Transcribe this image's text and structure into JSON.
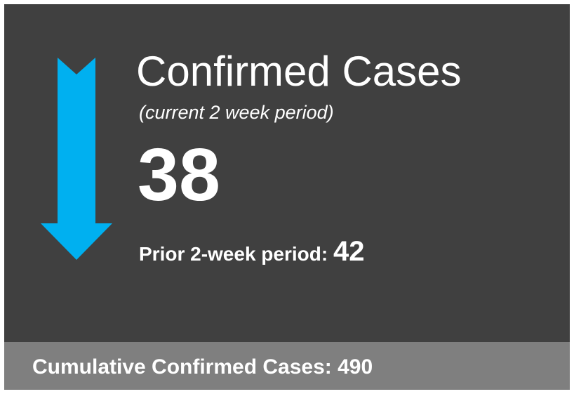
{
  "card": {
    "title": "Confirmed Cases",
    "subtitle": "(current 2 week period)",
    "current_value": 38,
    "prior_label": "Prior 2-week period:",
    "prior_value": 42,
    "cumulative_label": "Cumulative Confirmed Cases:",
    "cumulative_value": 490
  }
}
